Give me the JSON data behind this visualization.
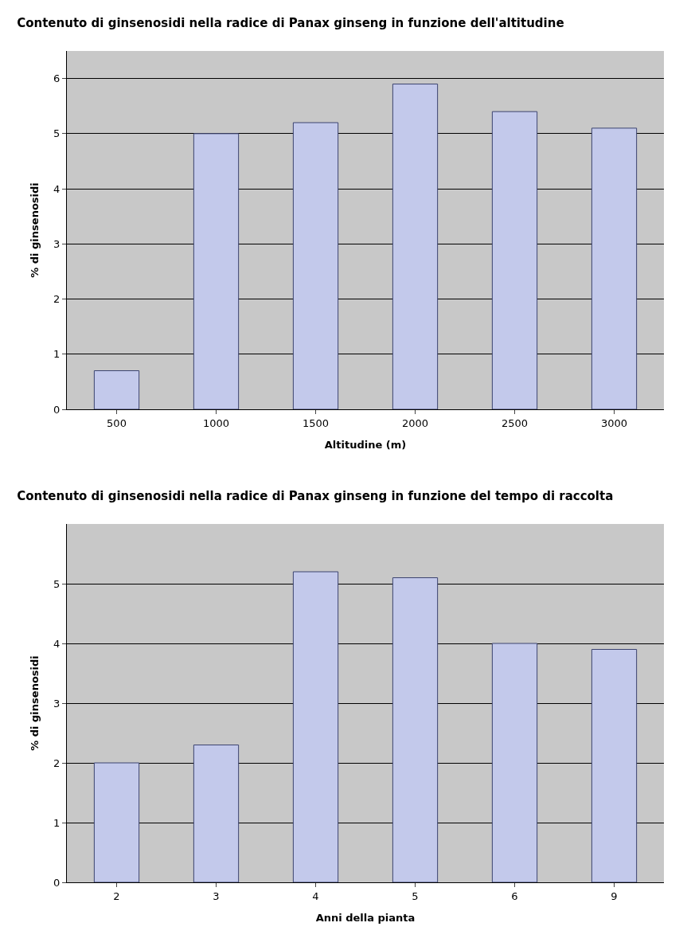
{
  "chart_data": [
    {
      "type": "bar",
      "title": "Contenuto di ginsenosidi nella radice di Panax ginseng in funzione dell'altitudine",
      "xlabel": "Altitudine (m)",
      "ylabel": "% di ginsenosidi",
      "categories": [
        "500",
        "1000",
        "1500",
        "2000",
        "2500",
        "3000"
      ],
      "values": [
        0.7,
        5.0,
        5.2,
        5.9,
        5.4,
        5.1
      ],
      "color": "#c3c9eb",
      "ylim": [
        0,
        6.5
      ],
      "yticks": [
        0,
        1,
        2,
        3,
        4,
        5,
        6
      ],
      "grid": "y",
      "legend": false
    },
    {
      "type": "bar",
      "title": "Contenuto di ginsenosidi nella radice di Panax ginseng in funzione del tempo di raccolta",
      "xlabel": "Anni della pianta",
      "ylabel": "% di ginsenosidi",
      "categories": [
        "2",
        "3",
        "4",
        "5",
        "6",
        "9"
      ],
      "values": [
        2.0,
        2.3,
        5.2,
        5.1,
        4.0,
        3.9
      ],
      "color": "#c3c9eb",
      "ylim": [
        0,
        6
      ],
      "yticks": [
        0,
        1,
        2,
        3,
        4,
        5
      ],
      "grid": "y",
      "legend": false
    }
  ]
}
